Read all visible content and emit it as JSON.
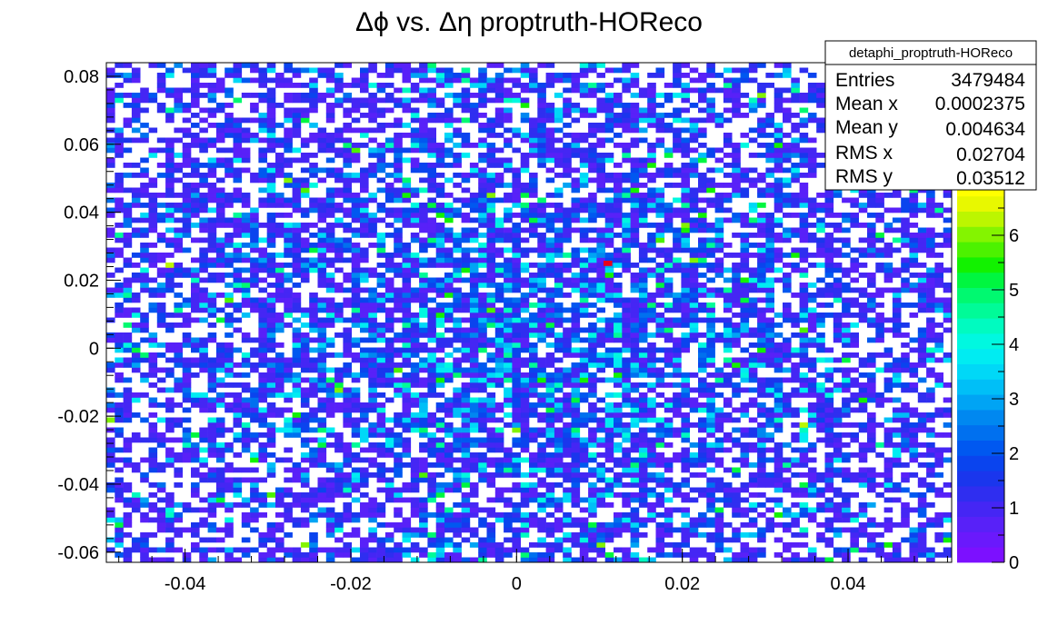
{
  "chart_data": {
    "type": "heatmap",
    "title": "Δϕ vs. Δη proptruth-HOReco",
    "xlabel": "",
    "ylabel": "",
    "xlim": [
      -0.0495,
      0.0525
    ],
    "ylim": [
      -0.063,
      0.084
    ],
    "x_ticks": [
      {
        "value": -0.04,
        "label": "-0.04"
      },
      {
        "value": -0.02,
        "label": "-0.02"
      },
      {
        "value": 0,
        "label": "0"
      },
      {
        "value": 0.02,
        "label": "0.02"
      },
      {
        "value": 0.04,
        "label": "0.04"
      }
    ],
    "y_ticks": [
      {
        "value": -0.06,
        "label": "-0.06"
      },
      {
        "value": -0.04,
        "label": "-0.04"
      },
      {
        "value": -0.02,
        "label": "-0.02"
      },
      {
        "value": 0,
        "label": "0"
      },
      {
        "value": 0.02,
        "label": "0.02"
      },
      {
        "value": 0.04,
        "label": "0.04"
      },
      {
        "value": 0.06,
        "label": "0.06"
      },
      {
        "value": 0.08,
        "label": "0.08"
      }
    ],
    "z_range": [
      0,
      7
    ],
    "z_ticks": [
      {
        "value": 0,
        "label": "0"
      },
      {
        "value": 1,
        "label": "1"
      },
      {
        "value": 2,
        "label": "2"
      },
      {
        "value": 3,
        "label": "3"
      },
      {
        "value": 4,
        "label": "4"
      },
      {
        "value": 5,
        "label": "5"
      },
      {
        "value": 6,
        "label": "6"
      }
    ],
    "bins": {
      "nx": 100,
      "ny": 100
    },
    "peak": {
      "x": 0.011,
      "y": 0.025,
      "z": 7
    },
    "palette": [
      "#7c10ff",
      "#6a19fc",
      "#5821f8",
      "#4526f4",
      "#2f2ef0",
      "#1a36ed",
      "#0a44ee",
      "#0058f0",
      "#0070ef",
      "#0088f0",
      "#00a4f4",
      "#00bff7",
      "#00d8f7",
      "#00ecf2",
      "#00f8e0",
      "#00fbc0",
      "#00fb98",
      "#00f970",
      "#00f640",
      "#12f200",
      "#4cf200",
      "#84f400",
      "#bcf600",
      "#e8f800",
      "#ffff00"
    ],
    "seed": 12345
  },
  "stats": {
    "name": "detaphi_proptruth-HOReco",
    "rows": [
      {
        "label": "Entries",
        "value": "3479484"
      },
      {
        "label": "Mean x",
        "value": "0.0002375"
      },
      {
        "label": "Mean y",
        "value": "0.004634"
      },
      {
        "label": "RMS x",
        "value": "0.02704"
      },
      {
        "label": "RMS y",
        "value": "0.03512"
      }
    ]
  }
}
